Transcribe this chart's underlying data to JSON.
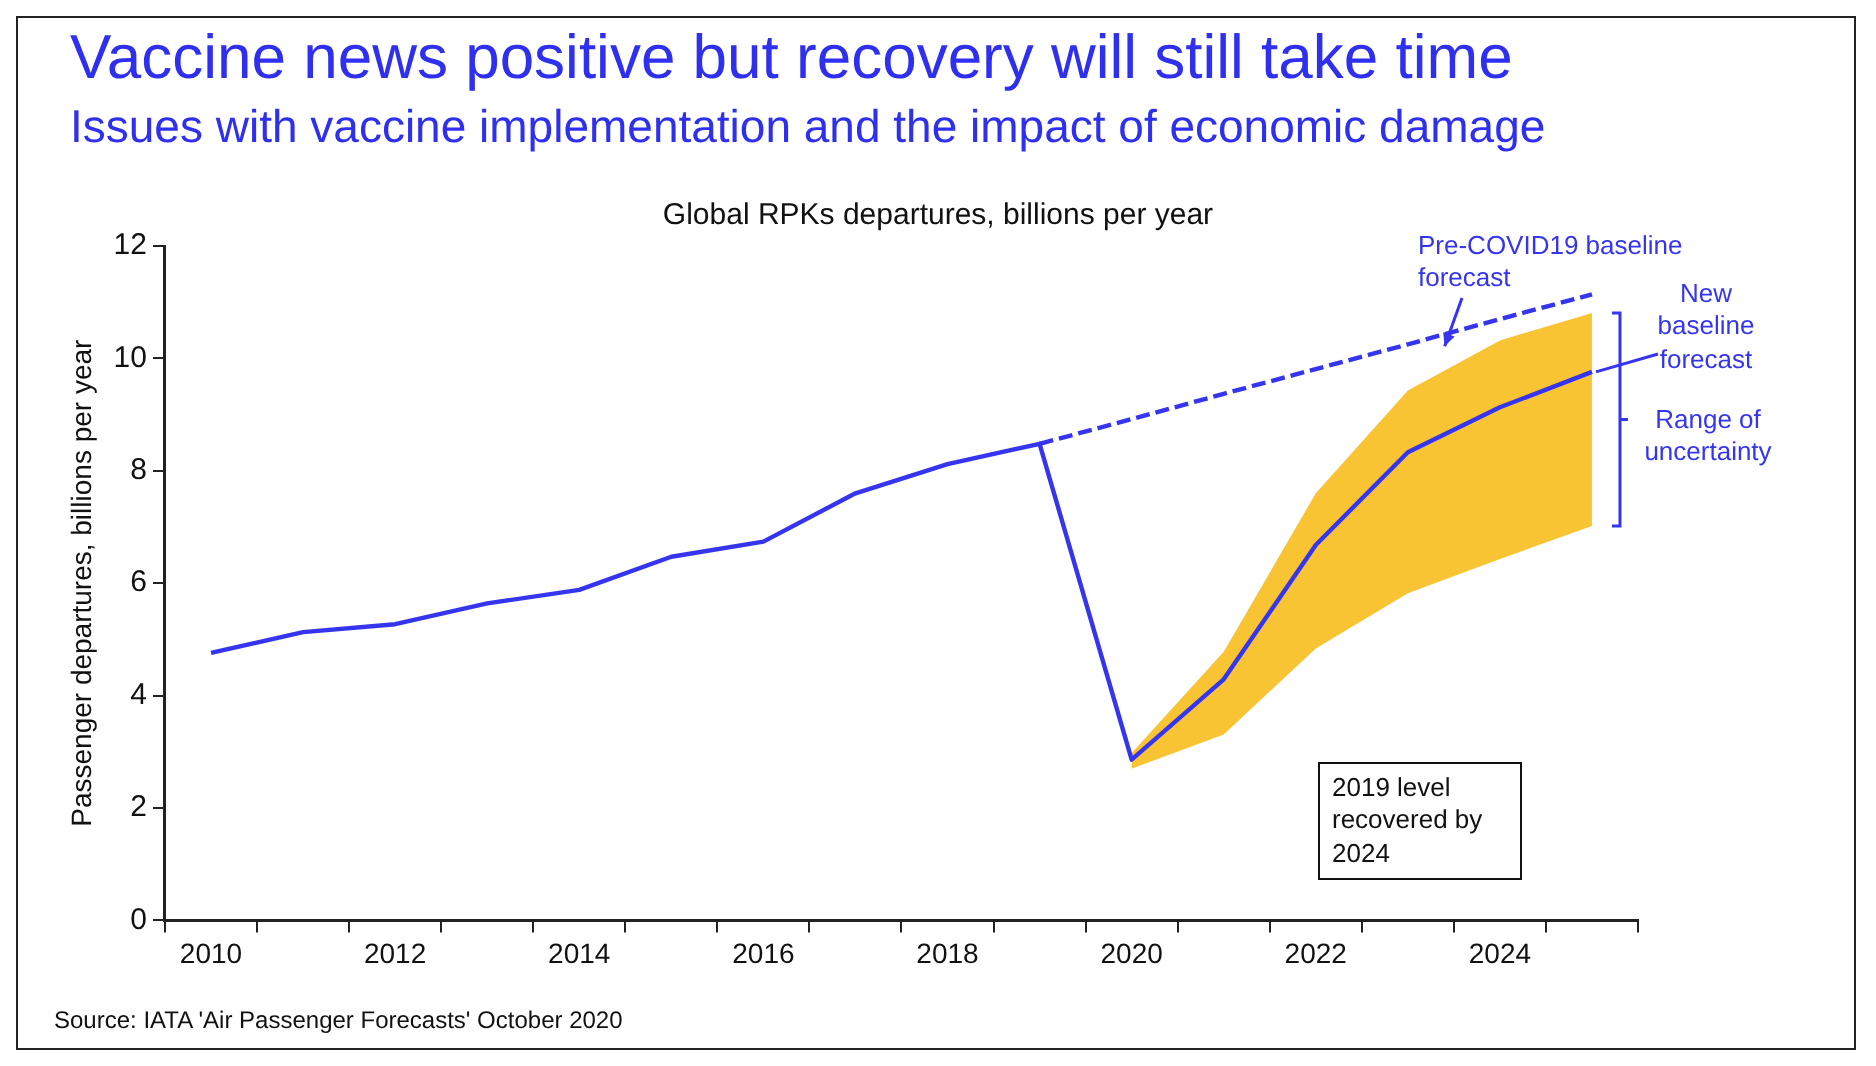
{
  "chart_data": {
    "type": "line",
    "title": "Vaccine news positive but recovery will still take time",
    "subtitle": "Issues with vaccine implementation and the impact of economic damage",
    "ylabel": "Passenger departures, billions per year",
    "categories": [
      "2010",
      null,
      "2012",
      null,
      "2014",
      null,
      "2016",
      null,
      "2018",
      null,
      "2020",
      null,
      "2022",
      null,
      "2024",
      null
    ],
    "series": [
      {
        "color": "#3535f0",
        "values": [
          4.76,
          5.13,
          5.27,
          5.64,
          5.88,
          6.47,
          6.74,
          7.6,
          8.12,
          8.48,
          2.86,
          4.29,
          6.68,
          8.33,
          9.13,
          9.76
        ],
        "lower": [
          null,
          null,
          null,
          null,
          null,
          null,
          null,
          null,
          null,
          null,
          2.7,
          3.31,
          4.84,
          5.82,
          6.43,
          7.02
        ],
        "upper": [
          null,
          null,
          null,
          null,
          null,
          null,
          null,
          null,
          null,
          null,
          2.98,
          4.78,
          7.6,
          9.43,
          10.32,
          10.81
        ]
      },
      {
        "color": "#3535f0",
        "line_style": "dashed",
        "values": [
          null,
          null,
          null,
          null,
          null,
          null,
          null,
          null,
          null,
          8.48,
          8.92,
          9.37,
          9.81,
          10.25,
          10.7,
          11.14
        ]
      }
    ],
    "ylim": [
      0,
      12
    ],
    "yticks": [
      0,
      2,
      4,
      6,
      8,
      10,
      12
    ],
    "annotations": [
      "Global RPKs departures, billions per year",
      "Pre-COVID19 baseline forecast",
      "New baseline forecast",
      "Range of uncertainty",
      "2019 level recovered by 2024",
      "Source: IATA 'Air Passenger Forecasts' October 2020"
    ]
  }
}
